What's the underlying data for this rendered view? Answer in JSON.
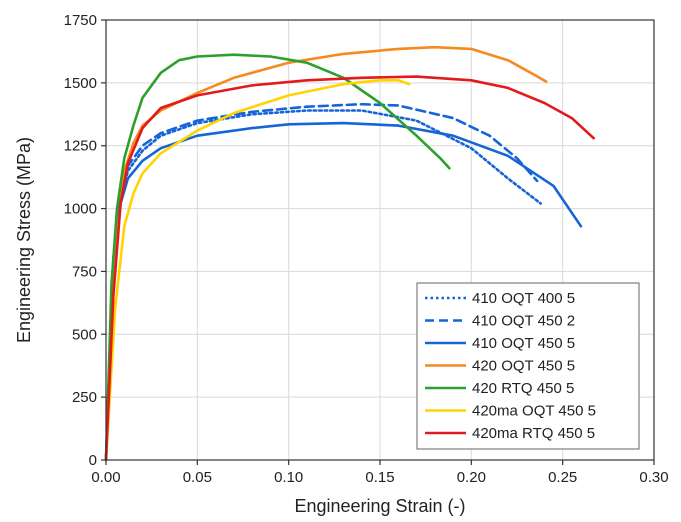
{
  "chart_data": {
    "type": "line",
    "title": "",
    "xlabel": "Engineering Strain (-)",
    "ylabel": "Engineering Stress (MPa)",
    "xlim": [
      0.0,
      0.3
    ],
    "ylim": [
      0,
      1750
    ],
    "xticks": [
      "0.00",
      "0.05",
      "0.10",
      "0.15",
      "0.20",
      "0.25",
      "0.30"
    ],
    "yticks": [
      "0",
      "250",
      "500",
      "750",
      "1000",
      "1250",
      "1500",
      "1750"
    ],
    "grid": true,
    "legend_position": "bottom-right",
    "series": [
      {
        "name": "410 OQT 400 5",
        "color": "#1565d8",
        "dash": "dotted",
        "x": [
          0,
          0.004,
          0.008,
          0.012,
          0.02,
          0.03,
          0.05,
          0.08,
          0.11,
          0.14,
          0.17,
          0.2,
          0.22,
          0.238
        ],
        "y": [
          0,
          780,
          1040,
          1150,
          1230,
          1290,
          1340,
          1375,
          1390,
          1390,
          1350,
          1240,
          1120,
          1020
        ]
      },
      {
        "name": "410 OQT 450 2",
        "color": "#1565d8",
        "dash": "dashed",
        "x": [
          0,
          0.004,
          0.008,
          0.012,
          0.02,
          0.03,
          0.05,
          0.08,
          0.11,
          0.14,
          0.16,
          0.19,
          0.21,
          0.225,
          0.236
        ],
        "y": [
          0,
          800,
          1080,
          1170,
          1250,
          1300,
          1350,
          1385,
          1405,
          1415,
          1410,
          1360,
          1290,
          1200,
          1110
        ]
      },
      {
        "name": "410 OQT 450 5",
        "color": "#1565d8",
        "dash": "solid",
        "x": [
          0,
          0.004,
          0.008,
          0.012,
          0.02,
          0.03,
          0.05,
          0.08,
          0.1,
          0.13,
          0.16,
          0.19,
          0.22,
          0.245,
          0.26
        ],
        "y": [
          0,
          760,
          1020,
          1120,
          1190,
          1240,
          1290,
          1320,
          1335,
          1340,
          1330,
          1290,
          1210,
          1090,
          930
        ]
      },
      {
        "name": "420 OQT 450 5",
        "color": "#f58a1f",
        "dash": "solid",
        "x": [
          0,
          0.005,
          0.01,
          0.015,
          0.02,
          0.03,
          0.05,
          0.07,
          0.1,
          0.13,
          0.16,
          0.18,
          0.2,
          0.22,
          0.235,
          0.241
        ],
        "y": [
          0,
          820,
          1150,
          1260,
          1330,
          1390,
          1460,
          1520,
          1580,
          1615,
          1635,
          1642,
          1635,
          1590,
          1530,
          1505
        ]
      },
      {
        "name": "420 RTQ 450 5",
        "color": "#2ca02c",
        "dash": "solid",
        "x": [
          0,
          0.003,
          0.006,
          0.01,
          0.015,
          0.02,
          0.03,
          0.04,
          0.05,
          0.07,
          0.09,
          0.11,
          0.13,
          0.15,
          0.17,
          0.183,
          0.188
        ],
        "y": [
          0,
          700,
          1000,
          1200,
          1330,
          1440,
          1540,
          1590,
          1605,
          1612,
          1605,
          1580,
          1520,
          1420,
          1290,
          1200,
          1160
        ]
      },
      {
        "name": "420ma OQT 450 5",
        "color": "#ffd400",
        "dash": "solid",
        "x": [
          0,
          0.005,
          0.01,
          0.015,
          0.02,
          0.03,
          0.05,
          0.07,
          0.1,
          0.13,
          0.15,
          0.16,
          0.166
        ],
        "y": [
          0,
          600,
          930,
          1060,
          1140,
          1220,
          1310,
          1380,
          1450,
          1495,
          1510,
          1510,
          1495
        ]
      },
      {
        "name": "420ma RTQ 450 5",
        "color": "#e31a1c",
        "dash": "solid",
        "x": [
          0,
          0.004,
          0.008,
          0.012,
          0.02,
          0.03,
          0.05,
          0.08,
          0.11,
          0.14,
          0.17,
          0.2,
          0.22,
          0.24,
          0.255,
          0.267
        ],
        "y": [
          0,
          650,
          1020,
          1180,
          1320,
          1400,
          1450,
          1490,
          1510,
          1520,
          1525,
          1510,
          1480,
          1420,
          1360,
          1280
        ]
      }
    ]
  }
}
